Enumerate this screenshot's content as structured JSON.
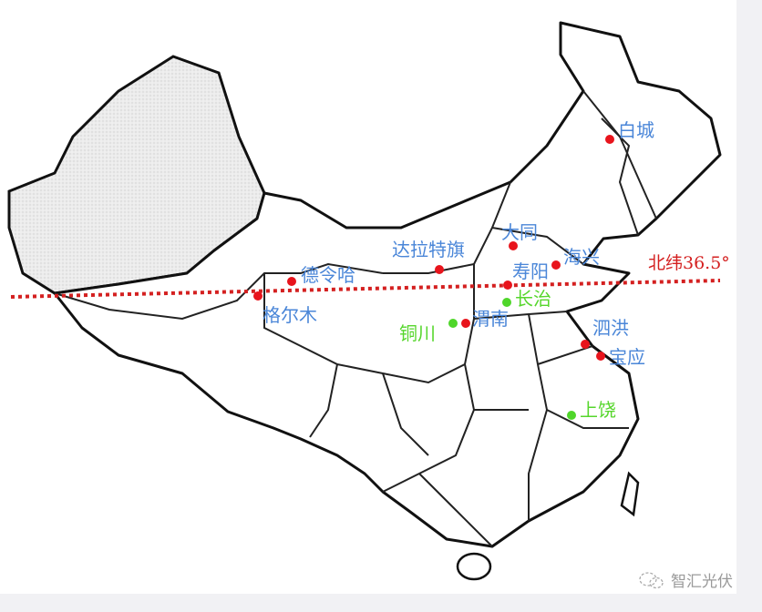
{
  "latitude_line": {
    "label": "北纬36.5°",
    "color": "#d42020"
  },
  "colors": {
    "red_site": "#e8141c",
    "green_site": "#4fd62a",
    "red_label": "#4a86d8",
    "green_label": "#56d62c"
  },
  "cities": [
    {
      "name": "白城",
      "type": "red"
    },
    {
      "name": "大同",
      "type": "red"
    },
    {
      "name": "海兴",
      "type": "red"
    },
    {
      "name": "达拉特旗",
      "type": "red"
    },
    {
      "name": "寿阳",
      "type": "red"
    },
    {
      "name": "德令哈",
      "type": "red"
    },
    {
      "name": "格尔木",
      "type": "red"
    },
    {
      "name": "长治",
      "type": "green"
    },
    {
      "name": "铜川",
      "type": "green"
    },
    {
      "name": "渭南",
      "type": "red"
    },
    {
      "name": "泗洪",
      "type": "red"
    },
    {
      "name": "宝应",
      "type": "red"
    },
    {
      "name": "上饶",
      "type": "green"
    }
  ],
  "watermark": {
    "text": "智汇光伏",
    "icon": "wechat-icon"
  }
}
